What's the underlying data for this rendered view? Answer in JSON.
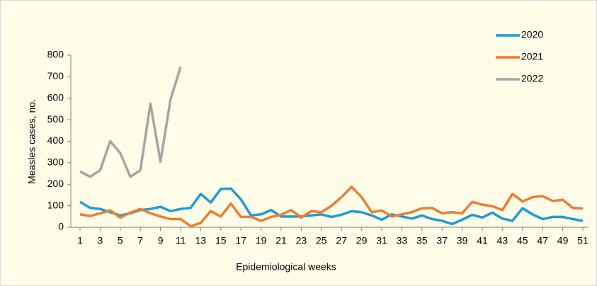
{
  "chart_data": {
    "type": "line",
    "xlabel": "Epidemiological weeks",
    "ylabel": "Measles cases, no.",
    "x": [
      1,
      2,
      3,
      4,
      5,
      6,
      7,
      8,
      9,
      10,
      11,
      12,
      13,
      14,
      15,
      16,
      17,
      18,
      19,
      20,
      21,
      22,
      23,
      24,
      25,
      26,
      27,
      28,
      29,
      30,
      31,
      32,
      33,
      34,
      35,
      36,
      37,
      38,
      39,
      40,
      41,
      42,
      43,
      44,
      45,
      46,
      47,
      48,
      49,
      50,
      51
    ],
    "xlim": [
      1,
      51
    ],
    "xticks": [
      1,
      3,
      5,
      7,
      9,
      11,
      13,
      15,
      17,
      19,
      21,
      23,
      25,
      27,
      29,
      31,
      33,
      35,
      37,
      39,
      41,
      43,
      45,
      47,
      49,
      51
    ],
    "ylim": [
      0,
      800
    ],
    "yticks": [
      0,
      100,
      200,
      300,
      400,
      500,
      600,
      700,
      800
    ],
    "grid": false,
    "legend": "top-right",
    "series": [
      {
        "name": "2020",
        "color": "#1f9bd7",
        "values": [
          118,
          90,
          85,
          70,
          55,
          65,
          80,
          85,
          95,
          75,
          85,
          90,
          155,
          115,
          178,
          180,
          130,
          55,
          60,
          80,
          50,
          50,
          50,
          55,
          60,
          48,
          58,
          75,
          70,
          55,
          35,
          60,
          50,
          40,
          55,
          38,
          30,
          15,
          35,
          58,
          45,
          68,
          40,
          30,
          88,
          60,
          38,
          48,
          48,
          38,
          30
        ]
      },
      {
        "name": "2021",
        "color": "#ed7d31",
        "values": [
          60,
          52,
          65,
          78,
          45,
          68,
          85,
          65,
          50,
          38,
          38,
          5,
          20,
          75,
          50,
          110,
          48,
          48,
          30,
          48,
          58,
          80,
          45,
          75,
          70,
          100,
          140,
          188,
          140,
          70,
          78,
          50,
          60,
          70,
          88,
          90,
          65,
          70,
          65,
          118,
          105,
          98,
          80,
          155,
          120,
          140,
          145,
          122,
          128,
          90,
          88
        ]
      },
      {
        "name": "2022",
        "color": "#a5a5a5",
        "values": [
          260,
          235,
          265,
          400,
          345,
          235,
          265,
          575,
          305,
          595,
          745,
          null,
          null,
          null,
          null,
          null,
          null,
          null,
          null,
          null,
          null,
          null,
          null,
          null,
          null,
          null,
          null,
          null,
          null,
          null,
          null,
          null,
          null,
          null,
          null,
          null,
          null,
          null,
          null,
          null,
          null,
          null,
          null,
          null,
          null,
          null,
          null,
          null,
          null,
          null,
          null
        ]
      }
    ]
  }
}
